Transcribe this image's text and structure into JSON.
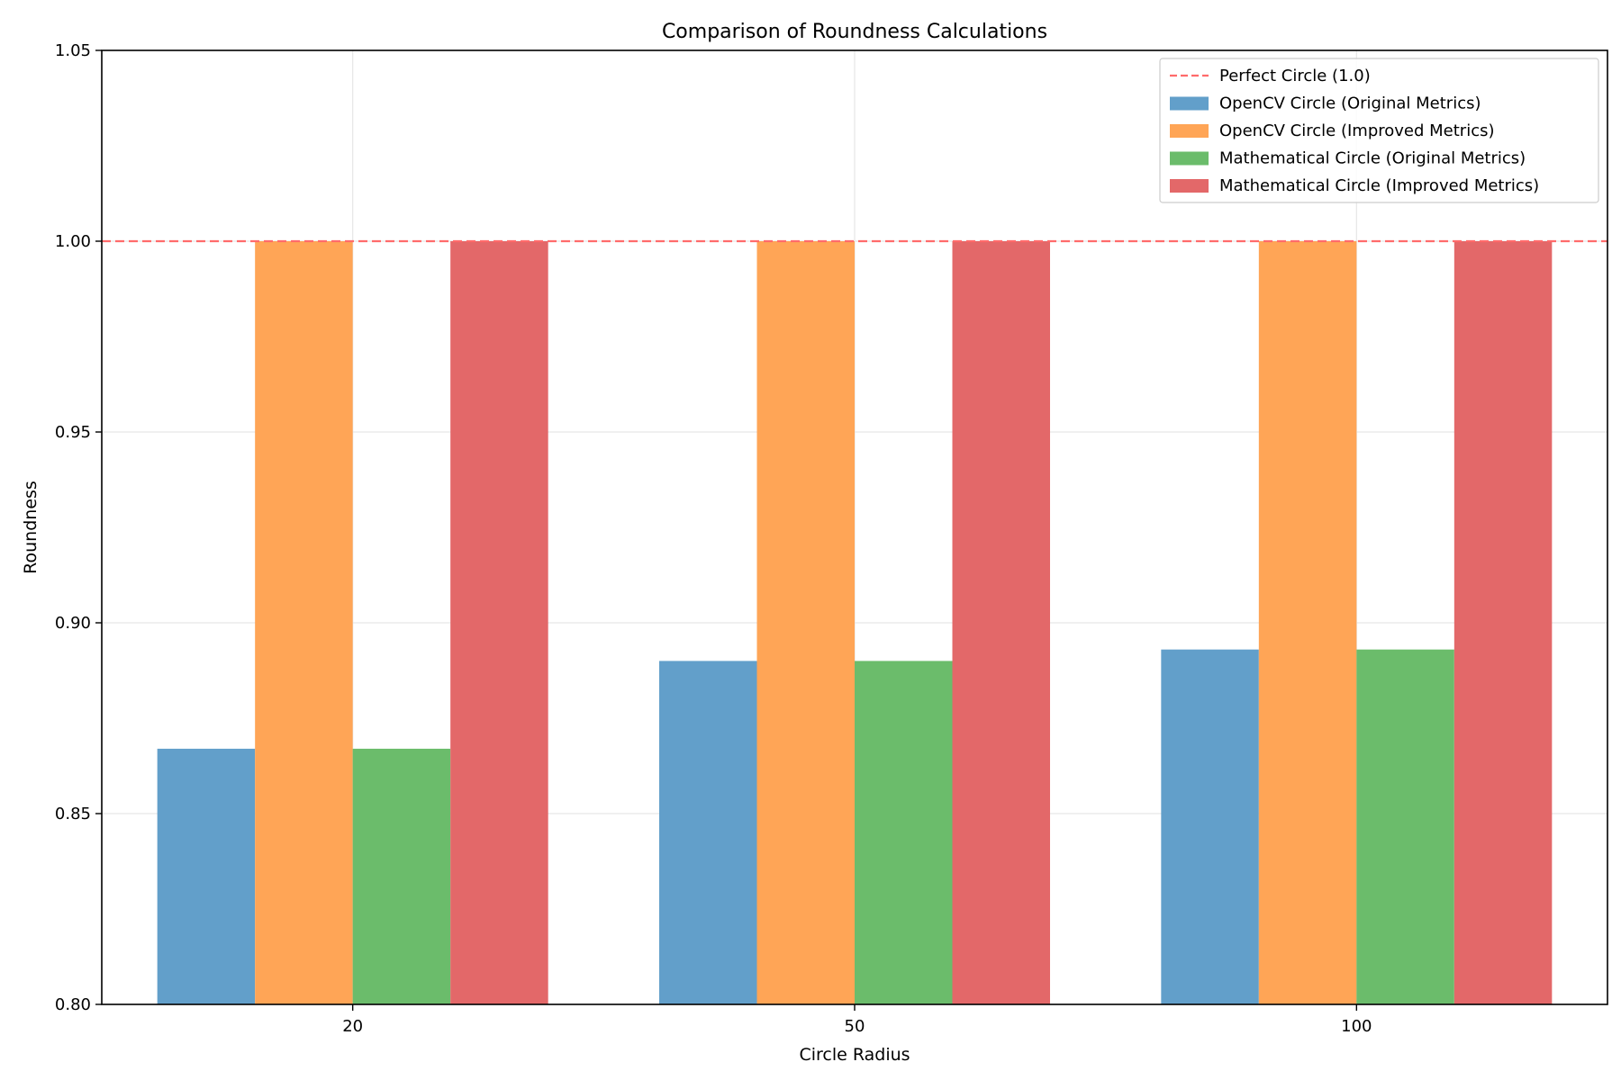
{
  "chart_data": {
    "type": "bar",
    "title": "Comparison of Roundness Calculations",
    "xlabel": "Circle Radius",
    "ylabel": "Roundness",
    "categories": [
      "20",
      "50",
      "100"
    ],
    "ylim": [
      0.8,
      1.05
    ],
    "yticks": [
      "0.80",
      "0.85",
      "0.90",
      "0.95",
      "1.00",
      "1.05"
    ],
    "grid": true,
    "legend_position": "top-right",
    "reference_line": {
      "name": "Perfect Circle (1.0)",
      "value": 1.0,
      "color": "#ff6b6b",
      "style": "dashed"
    },
    "series": [
      {
        "name": "OpenCV Circle (Original Metrics)",
        "color": "#629fca",
        "values": [
          0.867,
          0.89,
          0.893
        ]
      },
      {
        "name": "OpenCV Circle (Improved Metrics)",
        "color": "#ffa556",
        "values": [
          1.0,
          1.0,
          1.0
        ]
      },
      {
        "name": "Mathematical Circle (Original Metrics)",
        "color": "#6bbc6b",
        "values": [
          0.867,
          0.89,
          0.893
        ]
      },
      {
        "name": "Mathematical Circle (Improved Metrics)",
        "color": "#e36869",
        "values": [
          1.0,
          1.0,
          1.0
        ]
      }
    ]
  }
}
